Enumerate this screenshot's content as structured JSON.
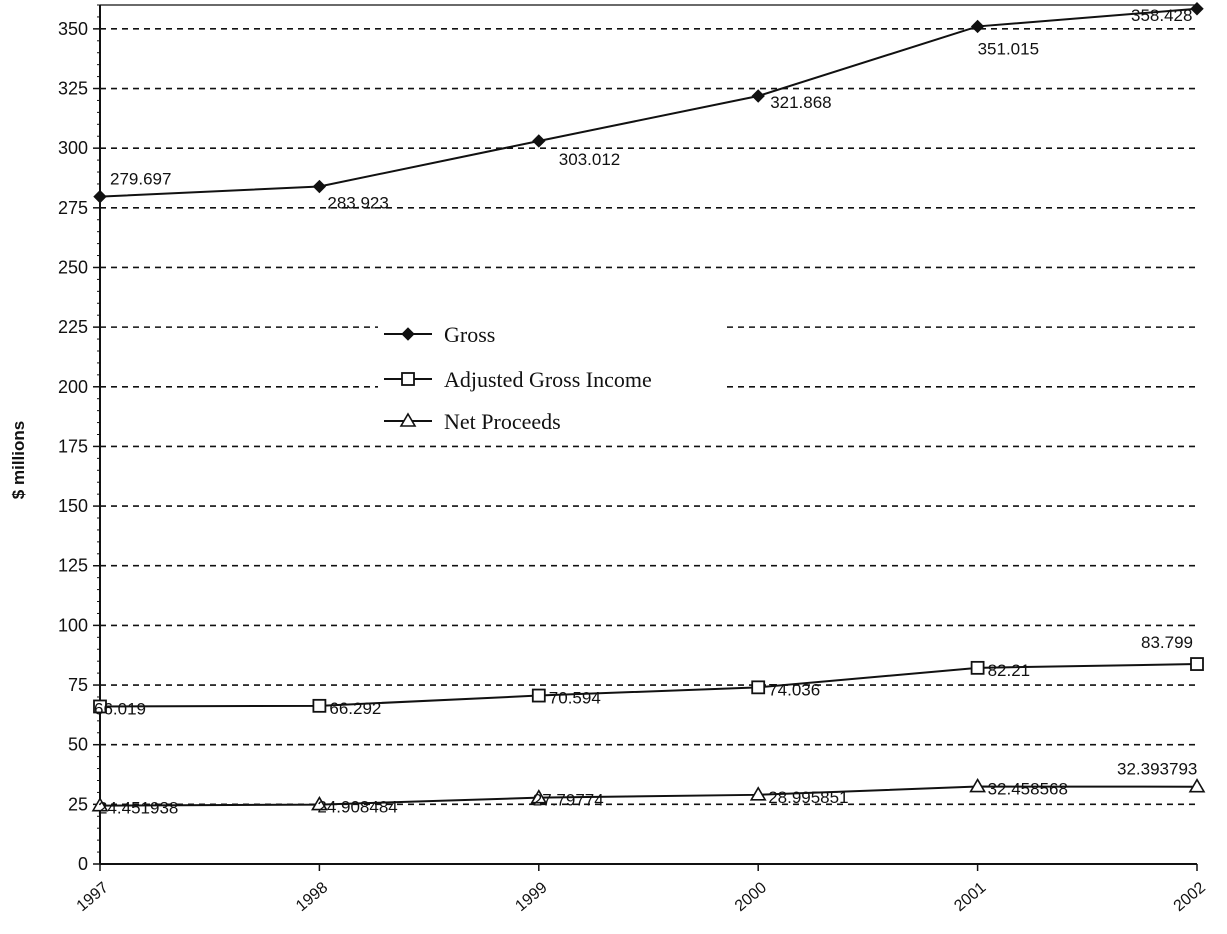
{
  "chart_data": {
    "type": "line",
    "title": "",
    "xlabel": "",
    "ylabel": "$ millions",
    "ylim": [
      0,
      360
    ],
    "yticks": [
      0,
      25,
      50,
      75,
      100,
      125,
      150,
      175,
      200,
      225,
      250,
      275,
      300,
      325,
      350
    ],
    "categories": [
      "1997",
      "1998",
      "1999",
      "2000",
      "2001",
      "2002"
    ],
    "grid": true,
    "legend_position": "center-left",
    "series": [
      {
        "name": "Gross",
        "marker": "diamond",
        "values": [
          279.697,
          283.923,
          303.012,
          321.868,
          351.015,
          358.428
        ],
        "labels": [
          "279.697",
          "283.923",
          "303.012",
          "321.868",
          "351.015",
          "358.428"
        ]
      },
      {
        "name": "Adjusted Gross Income",
        "marker": "square",
        "values": [
          66.019,
          66.292,
          70.594,
          74.036,
          82.21,
          83.799
        ],
        "labels": [
          "66.019",
          "66.292",
          "70.594",
          "74.036",
          "82.21",
          "83.799"
        ]
      },
      {
        "name": "Net Proceeds",
        "marker": "triangle",
        "values": [
          24.451938,
          24.908484,
          27.79774,
          28.995851,
          32.458568,
          32.393793
        ],
        "labels": [
          "24.451938",
          "24.908484",
          "27.79774",
          "28.995851",
          "32.458568",
          "32.393793"
        ]
      }
    ]
  }
}
